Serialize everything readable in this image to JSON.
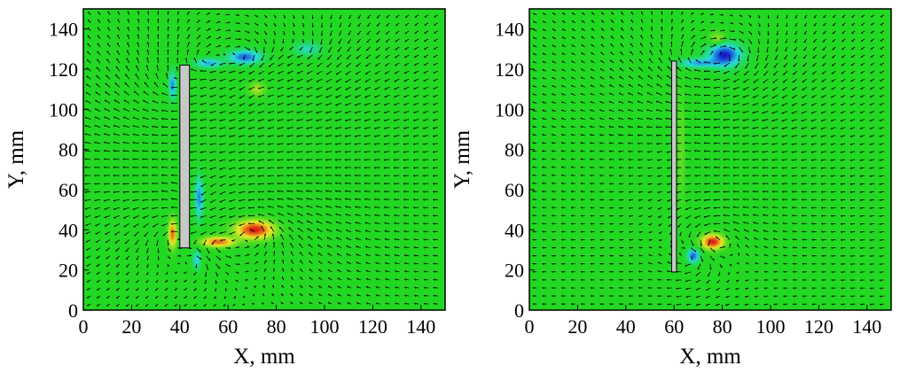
{
  "chart_data": [
    {
      "type": "heatmap",
      "subtype": "vector-field-over-vorticity-contour",
      "xlabel": "X, mm",
      "ylabel": "Y, mm",
      "xlim": [
        0,
        150
      ],
      "ylim": [
        0,
        150
      ],
      "xticks": [
        "0",
        "20",
        "40",
        "60",
        "80",
        "100",
        "120",
        "140"
      ],
      "yticks": [
        "0",
        "20",
        "40",
        "60",
        "80",
        "100",
        "120",
        "140"
      ],
      "grid": false,
      "background_color": "#22d822",
      "colormap": {
        "negative": "#1515d0",
        "neutral": "#22d822",
        "positive": "#e01414"
      },
      "plate": {
        "x": [
          40,
          44
        ],
        "y": [
          31,
          122
        ],
        "fill": "#c8c8c8"
      },
      "vortices": [
        {
          "x": 71,
          "y": 40,
          "sign": 1,
          "strength": 1.0,
          "rx": 7,
          "ry": 4
        },
        {
          "x": 56,
          "y": 34,
          "sign": 1,
          "strength": 0.8,
          "rx": 6,
          "ry": 2.2
        },
        {
          "x": 37,
          "y": 38,
          "sign": 1,
          "strength": 0.8,
          "rx": 1.5,
          "ry": 6
        },
        {
          "x": 48,
          "y": 56,
          "sign": -1,
          "strength": 0.7,
          "rx": 1.5,
          "ry": 9
        },
        {
          "x": 47,
          "y": 25,
          "sign": -1,
          "strength": 0.5,
          "rx": 1.4,
          "ry": 4
        },
        {
          "x": 37,
          "y": 112,
          "sign": -1,
          "strength": 0.7,
          "rx": 1.3,
          "ry": 6
        },
        {
          "x": 67,
          "y": 126,
          "sign": -1,
          "strength": 0.8,
          "rx": 6,
          "ry": 3
        },
        {
          "x": 52,
          "y": 123,
          "sign": -1,
          "strength": 0.6,
          "rx": 5,
          "ry": 2
        },
        {
          "x": 93,
          "y": 130,
          "sign": -1,
          "strength": 0.35,
          "rx": 5,
          "ry": 3
        },
        {
          "x": 72,
          "y": 110,
          "sign": 1,
          "strength": 0.3,
          "rx": 3,
          "ry": 3
        }
      ]
    },
    {
      "type": "heatmap",
      "subtype": "vector-field-over-vorticity-contour",
      "xlabel": "X, mm",
      "ylabel": "Y, mm",
      "xlim": [
        0,
        150
      ],
      "ylim": [
        0,
        150
      ],
      "xticks": [
        "0",
        "20",
        "40",
        "60",
        "80",
        "100",
        "120",
        "140"
      ],
      "yticks": [
        "0",
        "20",
        "40",
        "60",
        "80",
        "100",
        "120",
        "140"
      ],
      "grid": false,
      "background_color": "#22d822",
      "colormap": {
        "negative": "#1515d0",
        "neutral": "#22d822",
        "positive": "#e01414"
      },
      "plate": {
        "x": [
          59,
          61
        ],
        "y": [
          19,
          124
        ],
        "fill": "#c8c8c8"
      },
      "vortices": [
        {
          "x": 81,
          "y": 127,
          "sign": -1,
          "strength": 1.0,
          "rx": 6,
          "ry": 5
        },
        {
          "x": 70,
          "y": 123,
          "sign": -1,
          "strength": 0.6,
          "rx": 7,
          "ry": 2
        },
        {
          "x": 78,
          "y": 135,
          "sign": 1,
          "strength": 0.3,
          "rx": 3,
          "ry": 3
        },
        {
          "x": 76,
          "y": 34,
          "sign": 1,
          "strength": 1.0,
          "rx": 4,
          "ry": 3.2
        },
        {
          "x": 68,
          "y": 27,
          "sign": -1,
          "strength": 0.8,
          "rx": 2.2,
          "ry": 3
        },
        {
          "x": 63,
          "y": 80,
          "sign": 1,
          "strength": 0.15,
          "rx": 1.5,
          "ry": 25
        }
      ]
    }
  ]
}
